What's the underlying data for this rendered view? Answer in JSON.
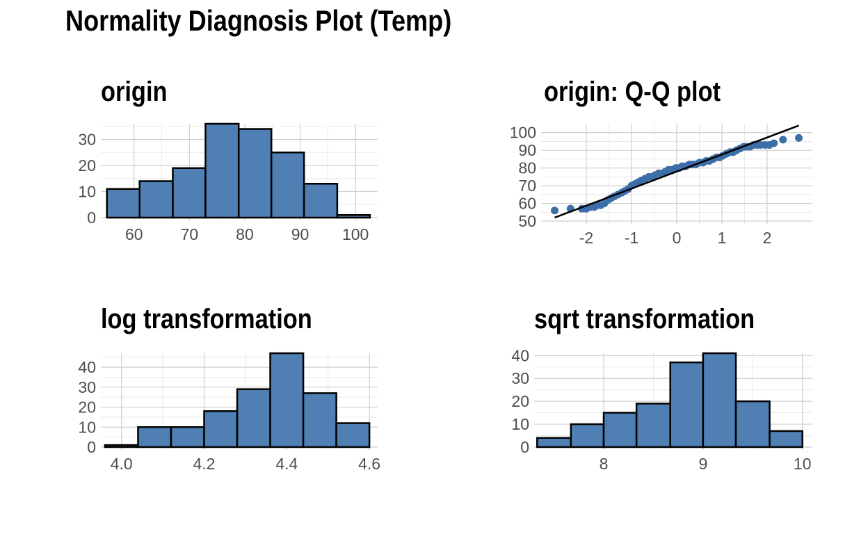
{
  "title": "Normality Diagnosis Plot (Temp)",
  "colors": {
    "bar_fill": "#4F7FB3",
    "bar_edge": "#000000",
    "point": "#3D6EA8",
    "line": "#000000"
  },
  "chart_data": [
    {
      "id": "origin",
      "type": "bar",
      "title": "origin",
      "bins": [
        {
          "from": 55.1,
          "to": 61.0,
          "count": 11
        },
        {
          "from": 61.0,
          "to": 67.0,
          "count": 14
        },
        {
          "from": 67.0,
          "to": 72.9,
          "count": 19
        },
        {
          "from": 72.9,
          "to": 78.9,
          "count": 36
        },
        {
          "from": 78.9,
          "to": 84.8,
          "count": 34
        },
        {
          "from": 84.8,
          "to": 90.7,
          "count": 25
        },
        {
          "from": 90.7,
          "to": 96.7,
          "count": 13
        },
        {
          "from": 96.7,
          "to": 102.6,
          "count": 1
        }
      ],
      "xlim": [
        54,
        104
      ],
      "ylim": [
        0,
        36
      ],
      "xticks": [
        60,
        70,
        80,
        90,
        100
      ],
      "yticks": [
        0,
        10,
        20,
        30
      ],
      "grid": true
    },
    {
      "id": "qq",
      "type": "scatter",
      "title": "origin: Q-Q plot",
      "x": [
        -2.7,
        -2.35,
        -2.1,
        -2.0,
        -1.9,
        -1.82,
        -1.75,
        -1.68,
        -1.6,
        -1.52,
        -1.45,
        -1.38,
        -1.3,
        -1.22,
        -1.15,
        -1.08,
        -1.0,
        -0.92,
        -0.85,
        -0.78,
        -0.7,
        -0.62,
        -0.55,
        -0.48,
        -0.4,
        -0.32,
        -0.25,
        -0.18,
        -0.1,
        -0.02,
        0.05,
        0.12,
        0.2,
        0.28,
        0.35,
        0.42,
        0.5,
        0.58,
        0.65,
        0.72,
        0.8,
        0.88,
        0.95,
        1.02,
        1.1,
        1.18,
        1.25,
        1.32,
        1.4,
        1.48,
        1.55,
        1.62,
        1.7,
        1.78,
        1.85,
        1.95,
        2.05,
        2.15,
        2.35,
        2.7
      ],
      "y": [
        56,
        57,
        57,
        57,
        58,
        58,
        59,
        59,
        60,
        62,
        63,
        64,
        65,
        66,
        67,
        68,
        70,
        71,
        72,
        73,
        74,
        75,
        75,
        76,
        77,
        77,
        78,
        79,
        79,
        80,
        80,
        81,
        81,
        82,
        82,
        82,
        83,
        83,
        84,
        84,
        85,
        86,
        86,
        87,
        88,
        89,
        89,
        90,
        91,
        92,
        92,
        92,
        93,
        93,
        93,
        93,
        93,
        94,
        96,
        97
      ],
      "line": {
        "x": [
          -2.7,
          2.7
        ],
        "y": [
          52,
          104
        ]
      },
      "xlim": [
        -3.0,
        3.0
      ],
      "ylim": [
        50,
        105
      ],
      "xticks": [
        -2,
        -1,
        0,
        1,
        2
      ],
      "yticks": [
        50,
        60,
        70,
        80,
        90,
        100
      ],
      "grid": true
    },
    {
      "id": "log",
      "type": "bar",
      "title": "log transformation",
      "bins": [
        {
          "from": 3.96,
          "to": 4.04,
          "count": 1
        },
        {
          "from": 4.04,
          "to": 4.12,
          "count": 10
        },
        {
          "from": 4.12,
          "to": 4.2,
          "count": 10
        },
        {
          "from": 4.2,
          "to": 4.28,
          "count": 18
        },
        {
          "from": 4.28,
          "to": 4.36,
          "count": 29
        },
        {
          "from": 4.36,
          "to": 4.44,
          "count": 47
        },
        {
          "from": 4.44,
          "to": 4.52,
          "count": 27
        },
        {
          "from": 4.52,
          "to": 4.6,
          "count": 12
        }
      ],
      "xlim": [
        3.95,
        4.62
      ],
      "ylim": [
        0,
        47
      ],
      "xticks": [
        "4.0",
        "4.2",
        "4.4",
        "4.6"
      ],
      "yticks": [
        0,
        10,
        20,
        30,
        40
      ],
      "grid": true
    },
    {
      "id": "sqrt",
      "type": "bar",
      "title": "sqrt transformation",
      "bins": [
        {
          "from": 7.33,
          "to": 7.67,
          "count": 4
        },
        {
          "from": 7.67,
          "to": 8.0,
          "count": 10
        },
        {
          "from": 8.0,
          "to": 8.33,
          "count": 15
        },
        {
          "from": 8.33,
          "to": 8.67,
          "count": 19
        },
        {
          "from": 8.67,
          "to": 9.0,
          "count": 37
        },
        {
          "from": 9.0,
          "to": 9.33,
          "count": 41
        },
        {
          "from": 9.33,
          "to": 9.67,
          "count": 20
        },
        {
          "from": 9.67,
          "to": 10.0,
          "count": 7
        }
      ],
      "xlim": [
        7.3,
        10.1
      ],
      "ylim": [
        0,
        41
      ],
      "xticks": [
        8,
        9,
        10
      ],
      "yticks": [
        0,
        10,
        20,
        30,
        40
      ],
      "grid": true
    }
  ]
}
